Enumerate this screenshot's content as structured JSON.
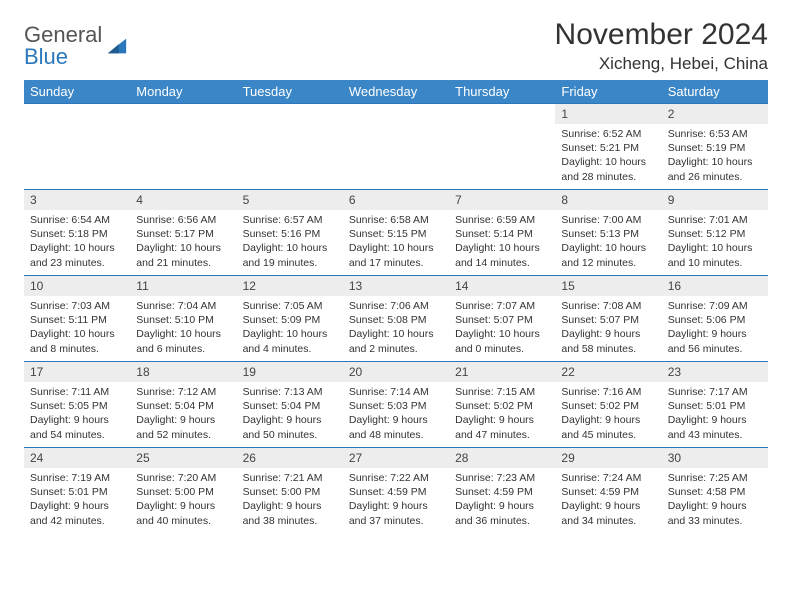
{
  "branding": {
    "logo_word1": "General",
    "logo_word2": "Blue",
    "logo_word1_color": "#555555",
    "logo_word2_color": "#2a77bb",
    "triangle_color": "#2a77bb"
  },
  "title": "November 2024",
  "location": "Xicheng, Hebei, China",
  "colors": {
    "header_bg": "#3b86c6",
    "header_text": "#ffffff",
    "rule": "#2a77bb",
    "daynum_bg": "#ededed",
    "text": "#333333",
    "background": "#ffffff"
  },
  "day_headers": [
    "Sunday",
    "Monday",
    "Tuesday",
    "Wednesday",
    "Thursday",
    "Friday",
    "Saturday"
  ],
  "weeks": [
    [
      null,
      null,
      null,
      null,
      null,
      {
        "n": "1",
        "sr": "Sunrise: 6:52 AM",
        "ss": "Sunset: 5:21 PM",
        "dl": "Daylight: 10 hours and 28 minutes."
      },
      {
        "n": "2",
        "sr": "Sunrise: 6:53 AM",
        "ss": "Sunset: 5:19 PM",
        "dl": "Daylight: 10 hours and 26 minutes."
      }
    ],
    [
      {
        "n": "3",
        "sr": "Sunrise: 6:54 AM",
        "ss": "Sunset: 5:18 PM",
        "dl": "Daylight: 10 hours and 23 minutes."
      },
      {
        "n": "4",
        "sr": "Sunrise: 6:56 AM",
        "ss": "Sunset: 5:17 PM",
        "dl": "Daylight: 10 hours and 21 minutes."
      },
      {
        "n": "5",
        "sr": "Sunrise: 6:57 AM",
        "ss": "Sunset: 5:16 PM",
        "dl": "Daylight: 10 hours and 19 minutes."
      },
      {
        "n": "6",
        "sr": "Sunrise: 6:58 AM",
        "ss": "Sunset: 5:15 PM",
        "dl": "Daylight: 10 hours and 17 minutes."
      },
      {
        "n": "7",
        "sr": "Sunrise: 6:59 AM",
        "ss": "Sunset: 5:14 PM",
        "dl": "Daylight: 10 hours and 14 minutes."
      },
      {
        "n": "8",
        "sr": "Sunrise: 7:00 AM",
        "ss": "Sunset: 5:13 PM",
        "dl": "Daylight: 10 hours and 12 minutes."
      },
      {
        "n": "9",
        "sr": "Sunrise: 7:01 AM",
        "ss": "Sunset: 5:12 PM",
        "dl": "Daylight: 10 hours and 10 minutes."
      }
    ],
    [
      {
        "n": "10",
        "sr": "Sunrise: 7:03 AM",
        "ss": "Sunset: 5:11 PM",
        "dl": "Daylight: 10 hours and 8 minutes."
      },
      {
        "n": "11",
        "sr": "Sunrise: 7:04 AM",
        "ss": "Sunset: 5:10 PM",
        "dl": "Daylight: 10 hours and 6 minutes."
      },
      {
        "n": "12",
        "sr": "Sunrise: 7:05 AM",
        "ss": "Sunset: 5:09 PM",
        "dl": "Daylight: 10 hours and 4 minutes."
      },
      {
        "n": "13",
        "sr": "Sunrise: 7:06 AM",
        "ss": "Sunset: 5:08 PM",
        "dl": "Daylight: 10 hours and 2 minutes."
      },
      {
        "n": "14",
        "sr": "Sunrise: 7:07 AM",
        "ss": "Sunset: 5:07 PM",
        "dl": "Daylight: 10 hours and 0 minutes."
      },
      {
        "n": "15",
        "sr": "Sunrise: 7:08 AM",
        "ss": "Sunset: 5:07 PM",
        "dl": "Daylight: 9 hours and 58 minutes."
      },
      {
        "n": "16",
        "sr": "Sunrise: 7:09 AM",
        "ss": "Sunset: 5:06 PM",
        "dl": "Daylight: 9 hours and 56 minutes."
      }
    ],
    [
      {
        "n": "17",
        "sr": "Sunrise: 7:11 AM",
        "ss": "Sunset: 5:05 PM",
        "dl": "Daylight: 9 hours and 54 minutes."
      },
      {
        "n": "18",
        "sr": "Sunrise: 7:12 AM",
        "ss": "Sunset: 5:04 PM",
        "dl": "Daylight: 9 hours and 52 minutes."
      },
      {
        "n": "19",
        "sr": "Sunrise: 7:13 AM",
        "ss": "Sunset: 5:04 PM",
        "dl": "Daylight: 9 hours and 50 minutes."
      },
      {
        "n": "20",
        "sr": "Sunrise: 7:14 AM",
        "ss": "Sunset: 5:03 PM",
        "dl": "Daylight: 9 hours and 48 minutes."
      },
      {
        "n": "21",
        "sr": "Sunrise: 7:15 AM",
        "ss": "Sunset: 5:02 PM",
        "dl": "Daylight: 9 hours and 47 minutes."
      },
      {
        "n": "22",
        "sr": "Sunrise: 7:16 AM",
        "ss": "Sunset: 5:02 PM",
        "dl": "Daylight: 9 hours and 45 minutes."
      },
      {
        "n": "23",
        "sr": "Sunrise: 7:17 AM",
        "ss": "Sunset: 5:01 PM",
        "dl": "Daylight: 9 hours and 43 minutes."
      }
    ],
    [
      {
        "n": "24",
        "sr": "Sunrise: 7:19 AM",
        "ss": "Sunset: 5:01 PM",
        "dl": "Daylight: 9 hours and 42 minutes."
      },
      {
        "n": "25",
        "sr": "Sunrise: 7:20 AM",
        "ss": "Sunset: 5:00 PM",
        "dl": "Daylight: 9 hours and 40 minutes."
      },
      {
        "n": "26",
        "sr": "Sunrise: 7:21 AM",
        "ss": "Sunset: 5:00 PM",
        "dl": "Daylight: 9 hours and 38 minutes."
      },
      {
        "n": "27",
        "sr": "Sunrise: 7:22 AM",
        "ss": "Sunset: 4:59 PM",
        "dl": "Daylight: 9 hours and 37 minutes."
      },
      {
        "n": "28",
        "sr": "Sunrise: 7:23 AM",
        "ss": "Sunset: 4:59 PM",
        "dl": "Daylight: 9 hours and 36 minutes."
      },
      {
        "n": "29",
        "sr": "Sunrise: 7:24 AM",
        "ss": "Sunset: 4:59 PM",
        "dl": "Daylight: 9 hours and 34 minutes."
      },
      {
        "n": "30",
        "sr": "Sunrise: 7:25 AM",
        "ss": "Sunset: 4:58 PM",
        "dl": "Daylight: 9 hours and 33 minutes."
      }
    ]
  ]
}
